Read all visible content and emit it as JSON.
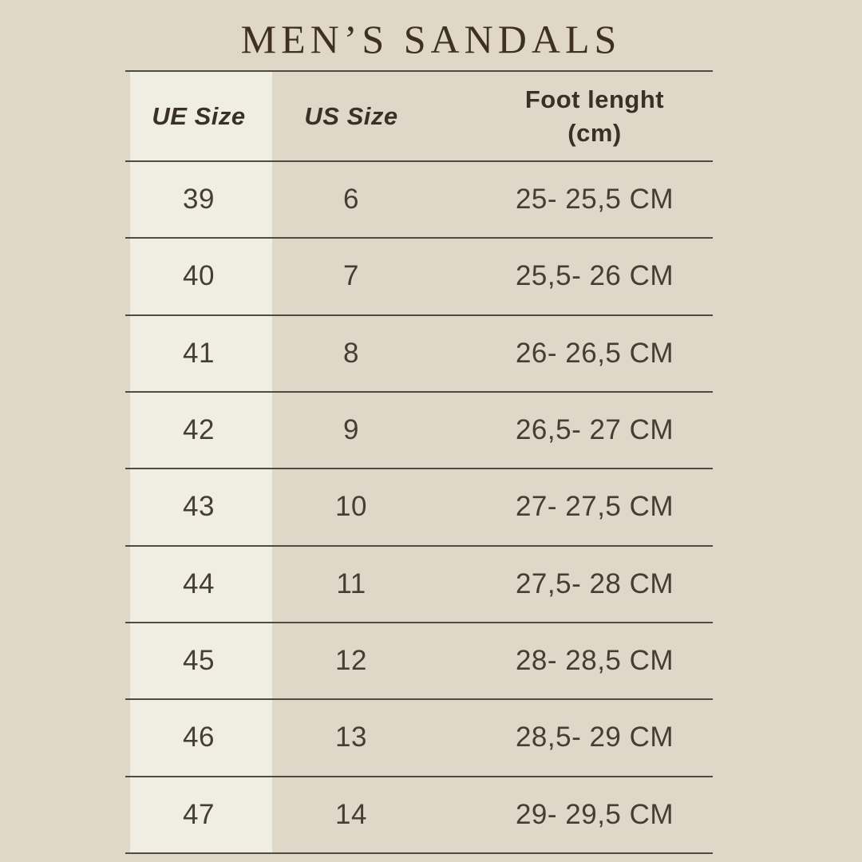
{
  "title": "MEN’S SANDALS",
  "colors": {
    "page_background": "#dfd8c8",
    "first_column_background": "#f0ede3",
    "row_line": "#504b3c",
    "title_text": "#3e3122",
    "cell_text": "#463e32"
  },
  "table": {
    "headers": {
      "ue": "UE Size",
      "us": "US Size",
      "foot": "Foot lenght\n(cm)"
    },
    "rows": [
      {
        "ue": "39",
        "us": "6",
        "foot": "25- 25,5 CM"
      },
      {
        "ue": "40",
        "us": "7",
        "foot": "25,5- 26 CM"
      },
      {
        "ue": "41",
        "us": "8",
        "foot": "26- 26,5 CM"
      },
      {
        "ue": "42",
        "us": "9",
        "foot": "26,5- 27 CM"
      },
      {
        "ue": "43",
        "us": "10",
        "foot": "27- 27,5 CM"
      },
      {
        "ue": "44",
        "us": "11",
        "foot": "27,5- 28 CM"
      },
      {
        "ue": "45",
        "us": "12",
        "foot": "28- 28,5 CM"
      },
      {
        "ue": "46",
        "us": "13",
        "foot": "28,5- 29 CM"
      },
      {
        "ue": "47",
        "us": "14",
        "foot": "29- 29,5 CM"
      }
    ]
  }
}
